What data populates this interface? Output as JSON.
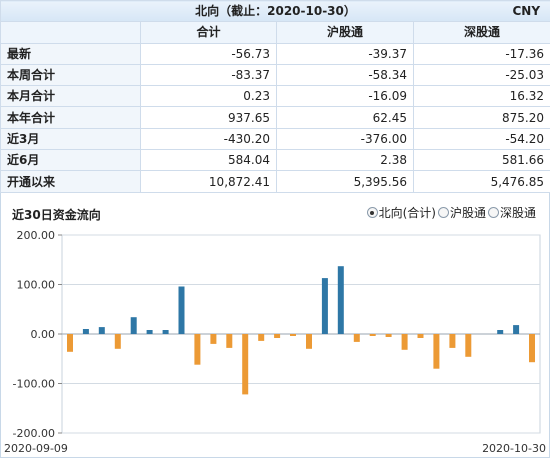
{
  "table": {
    "title": "北向（截止：2020-10-30）",
    "currency": "CNY",
    "columns": [
      "合计",
      "沪股通",
      "深股通"
    ],
    "rows": [
      {
        "label": "最新",
        "values": [
          "-56.73",
          "-39.37",
          "-17.36"
        ]
      },
      {
        "label": "本周合计",
        "values": [
          "-83.37",
          "-58.34",
          "-25.03"
        ]
      },
      {
        "label": "本月合计",
        "values": [
          "0.23",
          "-16.09",
          "16.32"
        ]
      },
      {
        "label": "本年合计",
        "values": [
          "937.65",
          "62.45",
          "875.20"
        ]
      },
      {
        "label": "近3月",
        "values": [
          "-430.20",
          "-376.00",
          "-54.20"
        ]
      },
      {
        "label": "近6月",
        "values": [
          "584.04",
          "2.38",
          "581.66"
        ]
      },
      {
        "label": "开通以来",
        "values": [
          "10,872.41",
          "5,395.56",
          "5,476.85"
        ]
      }
    ]
  },
  "chart_header": {
    "title": "近30日资金流向",
    "options": [
      {
        "label": "北向(合计)",
        "selected": true
      },
      {
        "label": "沪股通",
        "selected": false
      },
      {
        "label": "深股通",
        "selected": false
      }
    ]
  },
  "chart_data": {
    "type": "bar",
    "ylim": [
      -200,
      200
    ],
    "yticks": [
      "200.00",
      "100.00",
      "0.00",
      "-100.00",
      "-200.00"
    ],
    "ytick_values": [
      200,
      100,
      0,
      -100,
      -200
    ],
    "x_start_label": "2020-09-09",
    "x_end_label": "2020-10-30",
    "positive_color": "#2e77a6",
    "negative_color": "#ec9a35",
    "values": [
      -36,
      10,
      14,
      -30,
      34,
      8,
      8,
      96,
      -62,
      -20,
      -28,
      -122,
      -14,
      -8,
      -4,
      -30,
      113,
      137,
      -16,
      -4,
      -6,
      -32,
      -8,
      -70,
      -28,
      -46,
      0,
      8,
      18,
      -57
    ]
  }
}
